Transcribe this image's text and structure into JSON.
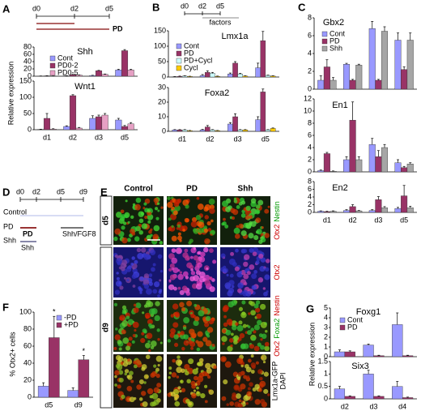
{
  "panel_letters": [
    "A",
    "B",
    "C",
    "D",
    "E",
    "F",
    "G"
  ],
  "timeline_A": {
    "days": [
      "d0",
      "d2",
      "d5"
    ],
    "treatment": "PD"
  },
  "timeline_B": {
    "days": [
      "d0",
      "d2",
      "d5"
    ],
    "treatment": "factors"
  },
  "timeline_D": {
    "days": [
      "d0",
      "d2",
      "d5",
      "d9"
    ],
    "rows": [
      "Control",
      "PD",
      "Shh"
    ],
    "bars": [
      "PD",
      "Shh/FGF8",
      "Shh"
    ]
  },
  "images": {
    "columns": [
      "Control",
      "PD",
      "Shh"
    ],
    "rows": [
      "d5",
      "d9"
    ],
    "stains": [
      [
        {
          "text": "Otx2",
          "color": "#cc0000"
        },
        {
          "text": "Nestin",
          "color": "#009900"
        }
      ],
      [
        {
          "text": "Otx2",
          "color": "#cc0000"
        }
      ],
      [
        {
          "text": "Otx2",
          "color": "#cc0000"
        },
        {
          "text": "Foxa2",
          "color": "#009900"
        },
        {
          "text": "Nestin",
          "color": "#cc0000"
        }
      ],
      [
        {
          "text": "Lmx1a-GFP",
          "color": "#009900"
        },
        {
          "text": "DAPI",
          "color": "#cc0000"
        }
      ]
    ]
  },
  "chart_data": [
    {
      "type": "bar",
      "title": "Shh",
      "ylabel": "Relative expression",
      "ylim": [
        0,
        80
      ],
      "yticks": [
        0,
        20,
        40,
        60,
        80
      ],
      "legend": "upper left",
      "series": [
        {
          "name": "Cont",
          "color": "#9999ff",
          "values": [
            0.5,
            1,
            2,
            17
          ],
          "errors": [
            0.2,
            0.3,
            0.5,
            2
          ]
        },
        {
          "name": "PD0-2",
          "color": "#993366",
          "values": [
            1,
            4,
            15,
            70
          ],
          "errors": [
            0.3,
            1,
            1,
            3
          ]
        },
        {
          "name": "PD0-5",
          "color": "#e6a0c4",
          "values": [
            0.5,
            3,
            5,
            17
          ],
          "errors": [
            0.2,
            0.5,
            1,
            2
          ]
        }
      ]
    },
    {
      "type": "bar",
      "title": "Wnt1",
      "categories": [
        "d1",
        "d2",
        "d3",
        "d5"
      ],
      "ylim": [
        0,
        150
      ],
      "yticks": [
        0,
        50,
        100,
        150
      ],
      "series": [
        {
          "color": "#9999ff",
          "values": [
            1,
            10,
            35,
            30
          ],
          "errors": [
            0.5,
            2,
            8,
            5
          ]
        },
        {
          "color": "#993366",
          "values": [
            35,
            105,
            40,
            10
          ],
          "errors": [
            15,
            3,
            5,
            3
          ]
        },
        {
          "color": "#e6a0c4",
          "values": [
            2,
            5,
            45,
            18
          ],
          "errors": [
            1,
            2,
            5,
            4
          ]
        }
      ]
    },
    {
      "type": "bar",
      "title": "Lmx1a",
      "ylim": [
        0,
        150
      ],
      "yticks": [
        0,
        50,
        100,
        150
      ],
      "legend": "upper left",
      "series": [
        {
          "name": "Cont",
          "color": "#9999ff",
          "values": [
            1,
            5,
            10,
            30
          ],
          "errors": [
            0.5,
            3,
            3,
            15
          ]
        },
        {
          "name": "PD",
          "color": "#993366",
          "values": [
            2,
            15,
            45,
            118
          ],
          "errors": [
            1,
            5,
            5,
            30
          ]
        },
        {
          "name": "PD+Cycl",
          "color": "#ccffff",
          "values": [
            3,
            12,
            10,
            5
          ],
          "errors": [
            1,
            3,
            2,
            1
          ]
        },
        {
          "name": "Cycl",
          "color": "#ffcc00",
          "values": [
            2,
            2,
            3,
            3
          ],
          "errors": [
            0.5,
            1,
            1,
            1
          ]
        }
      ]
    },
    {
      "type": "bar",
      "title": "Foxa2",
      "categories": [
        "d1",
        "d2",
        "d3",
        "d5"
      ],
      "ylim": [
        0,
        30
      ],
      "yticks": [
        0,
        10,
        20,
        30
      ],
      "series": [
        {
          "color": "#9999ff",
          "values": [
            1,
            1,
            5,
            8
          ],
          "errors": [
            0.2,
            0.3,
            1,
            2
          ]
        },
        {
          "color": "#993366",
          "values": [
            1,
            3,
            10,
            27
          ],
          "errors": [
            0.2,
            1,
            2,
            2
          ]
        },
        {
          "color": "#ccffff",
          "values": [
            1,
            1,
            1,
            1
          ],
          "errors": [
            0.2,
            0.2,
            0.2,
            0.2
          ]
        },
        {
          "color": "#ffcc00",
          "values": [
            0.5,
            0.5,
            1,
            2
          ],
          "errors": [
            0.1,
            0.1,
            0.2,
            0.3
          ]
        }
      ]
    },
    {
      "type": "bar",
      "title": "Gbx2",
      "ylim": [
        0,
        8
      ],
      "yticks": [
        0,
        2,
        4,
        6,
        8
      ],
      "legend": "upper left",
      "series": [
        {
          "name": "Cont",
          "color": "#9999ff",
          "values": [
            1,
            2.8,
            6.8,
            5.5
          ],
          "errors": [
            0.5,
            0.1,
            0.8,
            0.8
          ]
        },
        {
          "name": "PD",
          "color": "#993366",
          "values": [
            2.5,
            1,
            1,
            2.2
          ],
          "errors": [
            0.8,
            0.1,
            0.1,
            0.3
          ]
        },
        {
          "name": "Shh",
          "color": "#a6a6a6",
          "values": [
            1,
            2.7,
            6.5,
            5.5
          ],
          "errors": [
            0.3,
            0.1,
            0.5,
            0.8
          ]
        }
      ]
    },
    {
      "type": "bar",
      "title": "En1",
      "ylim": [
        0,
        12
      ],
      "yticks": [
        0,
        2,
        4,
        6,
        8,
        10,
        12
      ],
      "series": [
        {
          "color": "#9999ff",
          "values": [
            0.2,
            2,
            4.5,
            1.5
          ],
          "errors": [
            0.1,
            0.5,
            1,
            0.5
          ]
        },
        {
          "color": "#993366",
          "values": [
            3,
            8.5,
            2.5,
            0.7
          ],
          "errors": [
            0.2,
            3,
            1,
            0.2
          ]
        },
        {
          "color": "#a6a6a6",
          "values": [
            0.1,
            2,
            4,
            1.3
          ],
          "errors": [
            0.05,
            0.5,
            0.5,
            0.2
          ]
        }
      ]
    },
    {
      "type": "bar",
      "title": "En2",
      "categories": [
        "d1",
        "d2",
        "d3",
        "d5"
      ],
      "ylim": [
        0,
        8
      ],
      "yticks": [
        0,
        2,
        4,
        6,
        8
      ],
      "series": [
        {
          "color": "#9999ff",
          "values": [
            0.3,
            0.5,
            0.5,
            1
          ],
          "errors": [
            0.1,
            0.2,
            0.2,
            0.3
          ]
        },
        {
          "color": "#993366",
          "values": [
            0.2,
            1.5,
            3.3,
            4.3
          ],
          "errors": [
            0.1,
            0.5,
            0.8,
            2.7
          ]
        },
        {
          "color": "#a6a6a6",
          "values": [
            0.3,
            0.4,
            1.2,
            1.2
          ],
          "errors": [
            0.1,
            0.1,
            0.3,
            0.4
          ]
        }
      ]
    },
    {
      "type": "bar",
      "ylabel": "% Otx2+ cells",
      "categories": [
        "d5",
        "d9"
      ],
      "ylim": [
        0,
        100
      ],
      "yticks": [
        0,
        20,
        40,
        60,
        80,
        100
      ],
      "legend": "upper right",
      "series": [
        {
          "name": "-PD",
          "color": "#9999ff",
          "values": [
            13,
            8
          ],
          "errors": [
            4,
            3
          ]
        },
        {
          "name": "+PD",
          "color": "#993366",
          "values": [
            70,
            44
          ],
          "errors": [
            25,
            5
          ],
          "annotations": [
            "*",
            "*"
          ]
        }
      ]
    },
    {
      "type": "bar",
      "title": "Foxg1",
      "ylabel": "Relative expression",
      "ylim": [
        0,
        5
      ],
      "yticks": [
        0,
        1,
        2,
        3,
        4,
        5
      ],
      "legend": "upper left",
      "series": [
        {
          "name": "Cont",
          "color": "#9999ff",
          "values": [
            0.5,
            1.2,
            3.3
          ],
          "errors": [
            0.2,
            0.1,
            1.2
          ]
        },
        {
          "name": "PD",
          "color": "#993366",
          "values": [
            0.5,
            0.1,
            0.1
          ],
          "errors": [
            0.1,
            0.05,
            0.05
          ]
        }
      ]
    },
    {
      "type": "bar",
      "title": "Six3",
      "categories": [
        "d2",
        "d3",
        "d4"
      ],
      "ylim": [
        0,
        1.5
      ],
      "yticks": [
        0,
        0.5,
        1,
        1.5
      ],
      "series": [
        {
          "color": "#9999ff",
          "values": [
            0.4,
            1,
            0.5
          ],
          "errors": [
            0.1,
            0.15,
            0.2
          ]
        },
        {
          "color": "#993366",
          "values": [
            0.1,
            0.1,
            0.05
          ],
          "errors": [
            0.02,
            0.02,
            0.02
          ]
        }
      ]
    }
  ]
}
